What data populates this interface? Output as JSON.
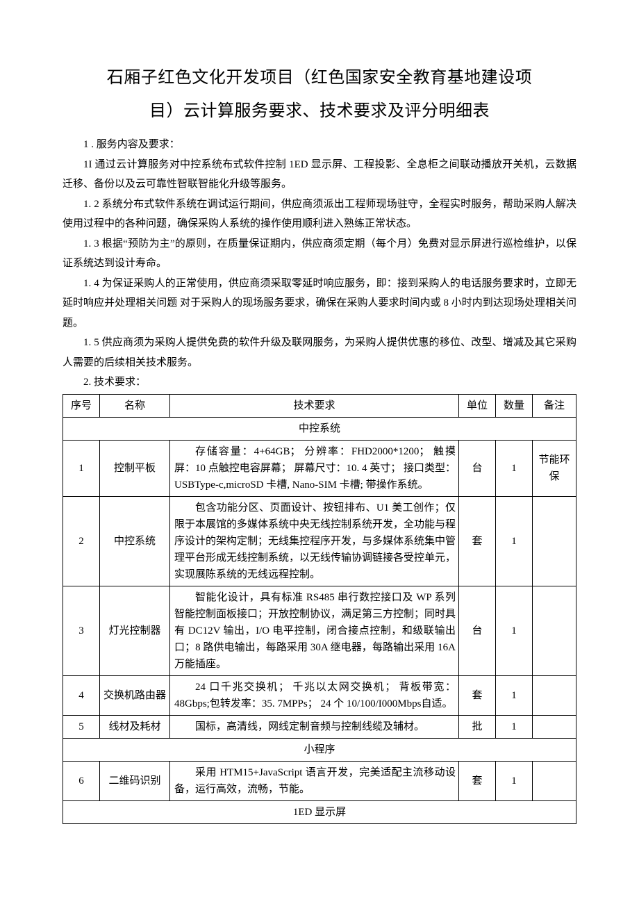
{
  "title_line1": "石厢子红色文化开发项目（红色国家安全教育基地建设项",
  "title_line2": "目）云计算服务要求、技术要求及评分明细表",
  "section1_head": "1 . 服务内容及要求：",
  "para_1_1": "1I 通过云计算服务对中控系统布式软件控制 1ED 显示屏、工程投影、全息柜之间联动播放开关机，云数据迁移、备份以及云可靠性智联智能化升级等服务。",
  "para_1_2": "1. 2 系统分布式软件系统在调试运行期间，供应商须派出工程师现场驻守，全程实时服务，帮助采购人解决使用过程中的各种问题，确保采购人系统的操作使用顺利进入熟练正常状态。",
  "para_1_3": "1. 3  根据“预防为主”的原则，在质量保证期内，供应商须定期（每个月）免费对显示屏进行巡检维护，以保证系统达到设计寿命。",
  "para_1_4": "1. 4  为保证采购人的正常使用，供应商须采取零延时响应服务，即：接到采购人的电话服务要求时，立即无延时响应并处理相关问题 对于采购人的现场服务要求，确保在采购人要求时间内或 8 小时内到达现场处理相关问题。",
  "para_1_5": "1. 5 供应商须为采购人提供免费的软件升级及联网服务，为采购人提供优惠的移位、改型、增减及其它采购人需要的后续相关技术服务。",
  "section2_head": "2. 技术要求：",
  "headers": {
    "idx": "序号",
    "name": "名称",
    "req": "技术要求",
    "unit": "单位",
    "qty": "数量",
    "note": "备注"
  },
  "group1": "中控系统",
  "group2": "小程序",
  "group3": "1ED 显示屏",
  "rows": [
    {
      "idx": "1",
      "name": "控制平板",
      "req": "存储容量：4+64GB； 分辨率：FHD2000*1200； 触摸屏：10 点触控电容屏幕； 屏幕尺寸：10. 4 英寸； 接口类型：USBType-c,microSD 卡槽, Nano-SIM 卡槽; 带操作系统。",
      "unit": "台",
      "qty": "1",
      "note": "节能环保"
    },
    {
      "idx": "2",
      "name": "中控系统",
      "req": "包含功能分区、页面设计、按钮排布、U1 美工创作；仅限于本展馆的多媒体系统中央无线控制系统开发，全功能与程序设计的架构定制；无线集控程序开发，与多媒体系统集中管理平台形成无线控制系统，以无线传输协调链接各受控单元，实现展陈系统的无线远程控制。",
      "unit": "套",
      "qty": "1",
      "note": ""
    },
    {
      "idx": "3",
      "name": "灯光控制器",
      "req": "智能化设计，具有标准 RS485 串行数控接口及 WP 系列智能控制面板接口；开放控制协议，满足第三方控制；同时具有 DC12V 输出，I/O 电平控制，闭合接点控制，和级联输出口；8 路供电输出，每路采用 30A 继电器，每路输出采用 16A 万能插座。",
      "unit": "台",
      "qty": "1",
      "note": ""
    },
    {
      "idx": "4",
      "name": "交换机路由器",
      "req": "24 口千兆交换机； 千兆以太网交换机； 背板带宽：48Gbps;包转发率：35. 7MPPs； 24 个 10/100/I000Mbps自适。",
      "unit": "套",
      "qty": "1",
      "note": ""
    },
    {
      "idx": "5",
      "name": "线材及耗材",
      "req": "国标，高清线，网线定制音频与控制线缆及辅材。",
      "unit": "批",
      "qty": "1",
      "note": ""
    },
    {
      "idx": "6",
      "name": "二维码识别",
      "req": "采用 HTM15+JavaScript 语言开发，完美适配主流移动设备，运行高效，流畅，节能。",
      "unit": "套",
      "qty": "1",
      "note": ""
    }
  ]
}
